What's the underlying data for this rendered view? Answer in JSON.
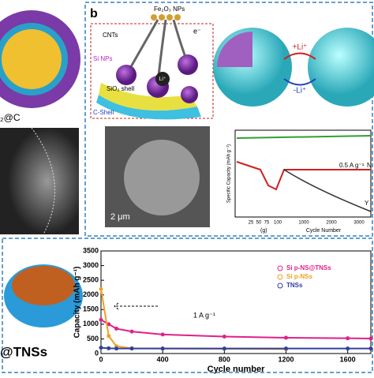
{
  "figure": {
    "panel_b_label": "b",
    "panel_a_caption": "₂@C",
    "schematic": {
      "fe2o3": "Fe₂O₃ NPs",
      "cnts": "CNTs",
      "electron": "e⁻",
      "li_ion": "Li⁺",
      "si_nps": "Si NPs",
      "sio2": "SiO₂ shell",
      "c_shell": "C-Shell"
    },
    "reaction": {
      "lithiation": "+Li⁺",
      "delithiation": "-Li⁺"
    },
    "sem_scale": "2 μm",
    "inset_chart": {
      "ylabel": "Specific Capacity (mAh g⁻¹)",
      "xlabel": "Cycle Number",
      "xticks": [
        "25",
        "50",
        "75",
        "100",
        "1000",
        "2000",
        "3000"
      ],
      "current": "0.5 A g⁻¹",
      "tag_n": "N",
      "tag_y": "Y",
      "unit_g": "(g)"
    },
    "bottom_left_caption": "@TNSs"
  },
  "chart_data": {
    "type": "scatter",
    "ylabel": "Capacity (mAh g⁻¹)",
    "xlabel": "Cycle number",
    "annotation": "1 A g⁻¹",
    "x": [
      0,
      50,
      100,
      200,
      400,
      800,
      1200,
      1600,
      1750
    ],
    "series": [
      {
        "name": "Si p-NS@TNSs",
        "color": "#e0208a",
        "values": [
          1150,
          1000,
          850,
          750,
          650,
          580,
          540,
          520,
          510
        ]
      },
      {
        "name": "Si p-NSs",
        "color": "#f0a020",
        "values": [
          2200,
          600,
          250,
          180,
          170,
          160,
          150,
          null,
          null
        ]
      },
      {
        "name": "TNSs",
        "color": "#3040a0",
        "values": [
          200,
          180,
          170,
          170,
          170,
          170,
          170,
          170,
          170
        ]
      }
    ],
    "xlim": [
      0,
      1750
    ],
    "ylim": [
      0,
      3500
    ],
    "xticks": [
      0,
      400,
      800,
      1200,
      1600
    ],
    "yticks": [
      0,
      500,
      1000,
      1500,
      2000,
      2500,
      3000,
      3500
    ],
    "legend": "right"
  }
}
